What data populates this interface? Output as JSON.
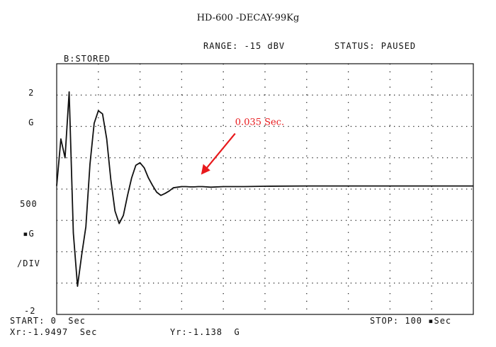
{
  "header": {
    "title": "HD-600 -DECAY-99Kg",
    "range": "RANGE: -15 dBV",
    "status": "STATUS: PAUSED",
    "trace_label": "B:STORED"
  },
  "axes": {
    "y_top": [
      "2",
      "G"
    ],
    "y_div": [
      "500",
      "▪G",
      "/DIV"
    ],
    "y_bottom": "-2"
  },
  "footer": {
    "start": "START: 0  Sec",
    "stop": "STOP: 100 ▪Sec",
    "xr": "Xr:-1.9497  Sec",
    "yr": "Yr:-1.138  G"
  },
  "chart_data": {
    "type": "line",
    "title": "HD-600 -DECAY-99Kg",
    "xlabel": "Sec",
    "ylabel": "G",
    "xlim": [
      0,
      0.1
    ],
    "ylim": [
      -2,
      2
    ],
    "grid": true,
    "annotation": {
      "text": "0.035 Sec.",
      "x": 0.035,
      "y": 0.05,
      "color": "#e8191c"
    },
    "series": [
      {
        "values_x": [
          0,
          0.001,
          0.002,
          0.003,
          0.004,
          0.005,
          0.006,
          0.007,
          0.008,
          0.009,
          0.01,
          0.011,
          0.012,
          0.013,
          0.014,
          0.015,
          0.016,
          0.017,
          0.018,
          0.019,
          0.02,
          0.021,
          0.022,
          0.023,
          0.024,
          0.025,
          0.026,
          0.027,
          0.028,
          0.029,
          0.03,
          0.031,
          0.032,
          0.033,
          0.034,
          0.035,
          0.037,
          0.04,
          0.045,
          0.05,
          0.06,
          0.07,
          0.08,
          0.09,
          0.1
        ],
        "values_y": [
          0.05,
          0.8,
          0.5,
          1.55,
          -0.7,
          -1.55,
          -1.05,
          -0.6,
          0.4,
          1.05,
          1.25,
          1.2,
          0.8,
          0.15,
          -0.35,
          -0.55,
          -0.42,
          -0.1,
          0.18,
          0.38,
          0.42,
          0.34,
          0.18,
          0.06,
          -0.05,
          -0.1,
          -0.07,
          -0.03,
          0.02,
          0.03,
          0.04,
          0.04,
          0.035,
          0.035,
          0.04,
          0.04,
          0.03,
          0.04,
          0.04,
          0.045,
          0.05,
          0.05,
          0.05,
          0.05,
          0.05
        ],
        "color": "#111111"
      }
    ]
  }
}
